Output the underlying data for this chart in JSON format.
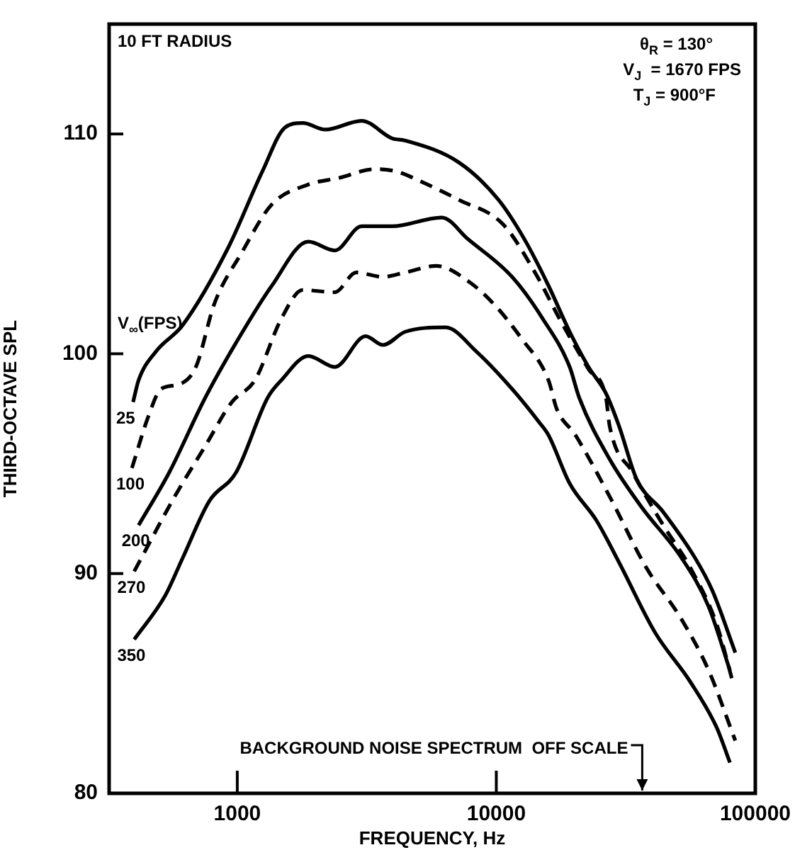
{
  "chart_data": {
    "type": "line",
    "xlabel": "FREQUENCY, Hz",
    "ylabel": "THIRD-OCTAVE SPL",
    "log": "x",
    "xlim": [
      320,
      100000
    ],
    "ylim": [
      80,
      115
    ],
    "xticks": [
      1000,
      10000,
      100000
    ],
    "yticks": [
      80,
      90,
      100,
      110
    ],
    "grid": false,
    "legend": false,
    "marker": "none",
    "annotations": [
      "10 FT RADIUS",
      "θ$_{R}$ = 130°",
      "V$_{J}$  = 1670 FPS",
      "T$_{J}$ = 900°F",
      "V$_{∞}$(FPS)",
      "BACKGROUND NOISE SPECTRUM  OFF SCALE"
    ],
    "series": [
      {
        "name": "25",
        "color": "#000000",
        "line_style": "solid",
        "x": [
          396,
          416,
          485,
          615,
          920,
          1250,
          1530,
          1790,
          2190,
          3020,
          3960,
          4450,
          7180,
          10200,
          13000,
          15900,
          19200,
          22700,
          26500,
          29800,
          34800,
          44100,
          58600,
          68400,
          83700
        ],
        "values": [
          97.8,
          98.8,
          100.1,
          101.3,
          104.8,
          108.3,
          110.3,
          110.5,
          110.2,
          110.6,
          109.8,
          109.7,
          108.7,
          107.0,
          105.1,
          103.1,
          101.0,
          99.4,
          98.2,
          96.7,
          94.3,
          92.8,
          90.7,
          89.2,
          86.4
        ]
      },
      {
        "name": "100",
        "color": "#000000",
        "line_style": "dashed",
        "x": [
          392,
          452,
          508,
          593,
          692,
          817,
          1040,
          1360,
          1880,
          2470,
          3400,
          4100,
          5200,
          7180,
          10600,
          14100,
          17900,
          22700,
          26500,
          27400,
          33600,
          44100,
          55900,
          70900,
          81700
        ],
        "values": [
          94.8,
          97.1,
          98.4,
          98.6,
          99.4,
          102.3,
          104.6,
          106.8,
          107.7,
          108.0,
          108.4,
          108.3,
          107.8,
          107.0,
          105.9,
          103.7,
          101.4,
          99.3,
          98.0,
          96.7,
          94.6,
          92.2,
          90.3,
          87.7,
          85.1
        ]
      },
      {
        "name": "200",
        "color": "#000000",
        "line_style": "solid",
        "x": [
          416,
          546,
          752,
          989,
          1360,
          1880,
          2380,
          3020,
          3960,
          6150,
          7800,
          11500,
          15100,
          19200,
          20900,
          27400,
          36500,
          52000,
          66000,
          79800
        ],
        "values": [
          92.2,
          94.6,
          98.0,
          100.5,
          103.1,
          105.1,
          104.7,
          105.8,
          105.8,
          106.2,
          105.2,
          103.5,
          101.6,
          99.4,
          98.0,
          95.2,
          93.0,
          90.7,
          88.5,
          85.6
        ]
      },
      {
        "name": "270",
        "color": "#000000",
        "line_style": "dashed",
        "x": [
          400,
          573,
          752,
          953,
          1170,
          1480,
          1790,
          2380,
          2880,
          3650,
          4450,
          5860,
          7800,
          9890,
          12500,
          15900,
          17100,
          20200,
          27400,
          37800,
          52000,
          66000,
          83700
        ],
        "values": [
          90.1,
          93.5,
          95.8,
          97.8,
          98.8,
          101.6,
          102.9,
          102.8,
          103.7,
          103.5,
          103.7,
          104.0,
          103.3,
          102.2,
          100.7,
          98.8,
          97.5,
          96.3,
          93.5,
          90.3,
          87.9,
          85.6,
          82.4
        ]
      },
      {
        "name": "350",
        "color": "#000000",
        "line_style": "solid",
        "x": [
          400,
          527,
          615,
          780,
          989,
          1310,
          1480,
          1880,
          2380,
          3130,
          3650,
          4450,
          6370,
          8380,
          11500,
          14600,
          15900,
          19200,
          24400,
          29800,
          41100,
          55900,
          70900,
          79800
        ],
        "values": [
          87.0,
          89.0,
          90.7,
          93.3,
          94.6,
          98.0,
          98.8,
          99.9,
          99.4,
          100.8,
          100.4,
          101.0,
          101.2,
          100.1,
          98.4,
          96.9,
          96.3,
          94.1,
          92.4,
          90.5,
          87.3,
          85.1,
          83.0,
          81.4
        ]
      }
    ]
  }
}
